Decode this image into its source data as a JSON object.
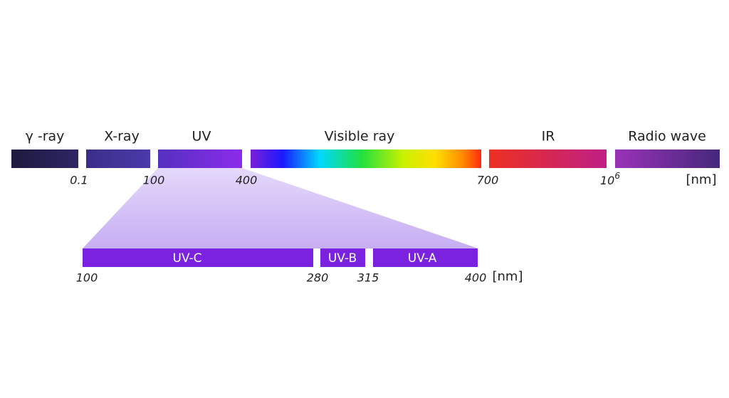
{
  "spectrum": {
    "bands": [
      "γ -ray",
      "X-ray",
      "UV",
      "Visible ray",
      "IR",
      "Radio wave"
    ],
    "boundaries": [
      "0.1",
      "100",
      "400",
      "700",
      {
        "base": "10",
        "exponent": "6"
      }
    ],
    "unit": "[nm]"
  },
  "uv_detail": {
    "bands": [
      "UV-C",
      "UV-B",
      "UV-A"
    ],
    "boundaries": [
      "100",
      "280",
      "315",
      "400"
    ],
    "unit": "[nm]"
  }
}
